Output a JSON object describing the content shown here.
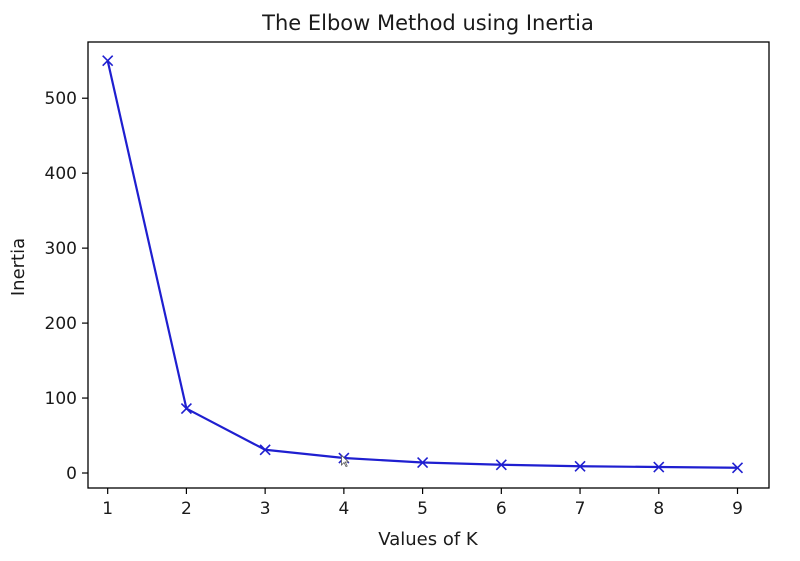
{
  "chart_data": {
    "type": "line",
    "title": "The Elbow Method using Inertia",
    "xlabel": "Values of K",
    "ylabel": "Inertia",
    "x": [
      1,
      2,
      3,
      4,
      5,
      6,
      7,
      8,
      9
    ],
    "series": [
      {
        "values": [
          550,
          86,
          31,
          20,
          14,
          11,
          9,
          8,
          7
        ]
      }
    ],
    "xlim": [
      0.75,
      9.4
    ],
    "ylim": [
      -20,
      575
    ],
    "xticks": [
      1,
      2,
      3,
      4,
      5,
      6,
      7,
      8,
      9
    ],
    "yticks": [
      0,
      100,
      200,
      300,
      400,
      500
    ],
    "marker": "x",
    "grid": false,
    "legend": "none",
    "colors": {
      "line": "#1f1fd0",
      "axes": "#000000",
      "background": "#ffffff"
    }
  }
}
